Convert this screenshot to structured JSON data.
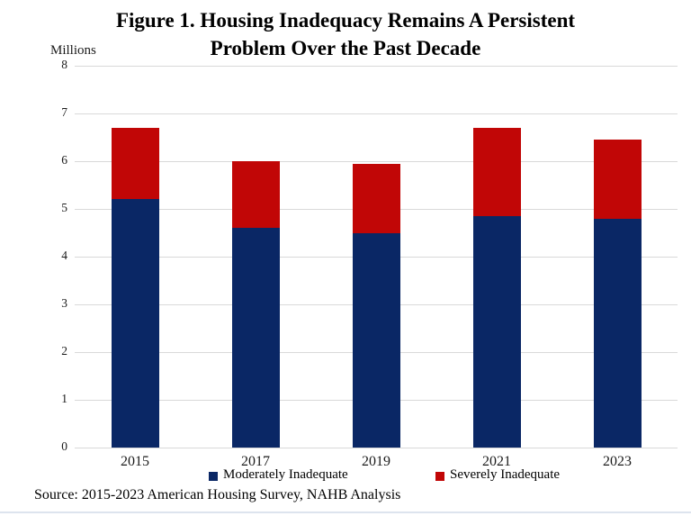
{
  "figure": {
    "title_line1": "Figure 1. Housing Inadequacy Remains A Persistent",
    "title_line2": "Problem Over the Past Decade",
    "axis_unit_label": "Millions",
    "source": "Source: 2015-2023 American Housing Survey, NAHB Analysis"
  },
  "legend": {
    "moderate_label": "Moderately Inadequate",
    "severe_label": "Severely Inadequate"
  },
  "colors": {
    "moderate": "#0a2765",
    "severe": "#c10606",
    "gridline": "#d9d9d9",
    "bottom_rule": "#dde4ee"
  },
  "chart_data": {
    "type": "bar",
    "stacked": true,
    "title": "Figure 1. Housing Inadequacy Remains A Persistent Problem Over the Past Decade",
    "categories": [
      "2015",
      "2017",
      "2019",
      "2021",
      "2023"
    ],
    "series": [
      {
        "name": "Moderately Inadequate",
        "color": "#0a2765",
        "values": [
          5.2,
          4.6,
          4.5,
          4.85,
          4.8
        ]
      },
      {
        "name": "Severely Inadequate",
        "color": "#c10606",
        "values": [
          1.5,
          1.4,
          1.45,
          1.85,
          1.65
        ]
      }
    ],
    "totals": [
      6.7,
      6.0,
      5.95,
      6.7,
      6.45
    ],
    "xlabel": "",
    "ylabel": "Millions",
    "ylim": [
      0,
      8
    ],
    "y_ticks": [
      0,
      1,
      2,
      3,
      4,
      5,
      6,
      7,
      8
    ],
    "grid": true,
    "legend_position": "bottom"
  }
}
